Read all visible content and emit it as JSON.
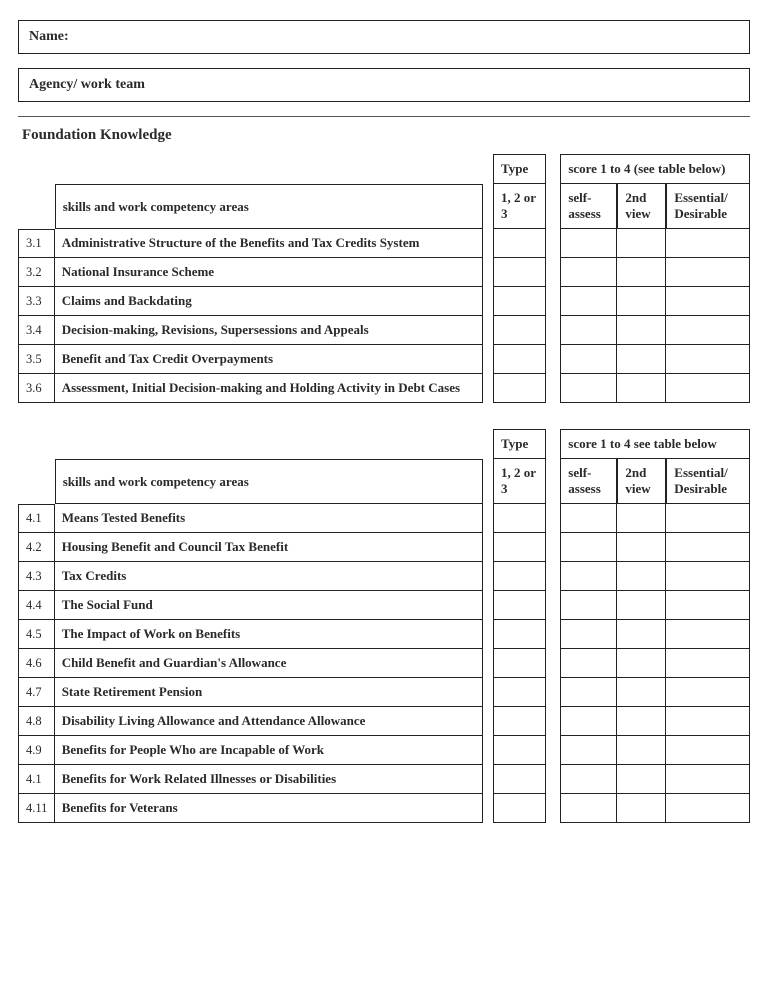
{
  "form": {
    "name_label": "Name:",
    "agency_label": "Agency/ work team"
  },
  "section_title": "Foundation Knowledge",
  "headers": {
    "skills": "skills and work competency areas",
    "type": "Type",
    "type_sub": "1, 2 or 3",
    "score_t1": "score 1 to 4 (see table below)",
    "score_t2": "score 1 to 4 see table below",
    "self": "self-assess",
    "second": "2nd view",
    "ess": "Essential/ Desirable"
  },
  "table1": [
    {
      "n": "3.1",
      "t": "Administrative Structure of the Benefits and Tax Credits System"
    },
    {
      "n": "3.2",
      "t": "National Insurance Scheme"
    },
    {
      "n": "3.3",
      "t": "Claims and Backdating"
    },
    {
      "n": "3.4",
      "t": "Decision-making, Revisions, Supersessions and Appeals"
    },
    {
      "n": "3.5",
      "t": "Benefit and Tax Credit Overpayments"
    },
    {
      "n": "3.6",
      "t": "Assessment, Initial Decision-making and Holding Activity in Debt Cases"
    }
  ],
  "table2": [
    {
      "n": "4.1",
      "t": "Means Tested Benefits"
    },
    {
      "n": "4.2",
      "t": "Housing Benefit and Council Tax Benefit"
    },
    {
      "n": "4.3",
      "t": "Tax Credits"
    },
    {
      "n": "4.4",
      "t": "The Social Fund"
    },
    {
      "n": "4.5",
      "t": "The Impact of Work on Benefits"
    },
    {
      "n": "4.6",
      "t": "Child Benefit and Guardian's Allowance"
    },
    {
      "n": "4.7",
      "t": "State Retirement Pension"
    },
    {
      "n": "4.8",
      "t": "Disability Living Allowance and Attendance Allowance"
    },
    {
      "n": "4.9",
      "t": "Benefits for People Who are Incapable of Work"
    },
    {
      "n": "4.1",
      "t": "Benefits for Work Related Illnesses or Disabilities"
    },
    {
      "n": "4.11",
      "t": "Benefits for Veterans"
    }
  ],
  "colors": {
    "border": "#222222",
    "text": "#2a2a2a",
    "bg": "#ffffff"
  }
}
